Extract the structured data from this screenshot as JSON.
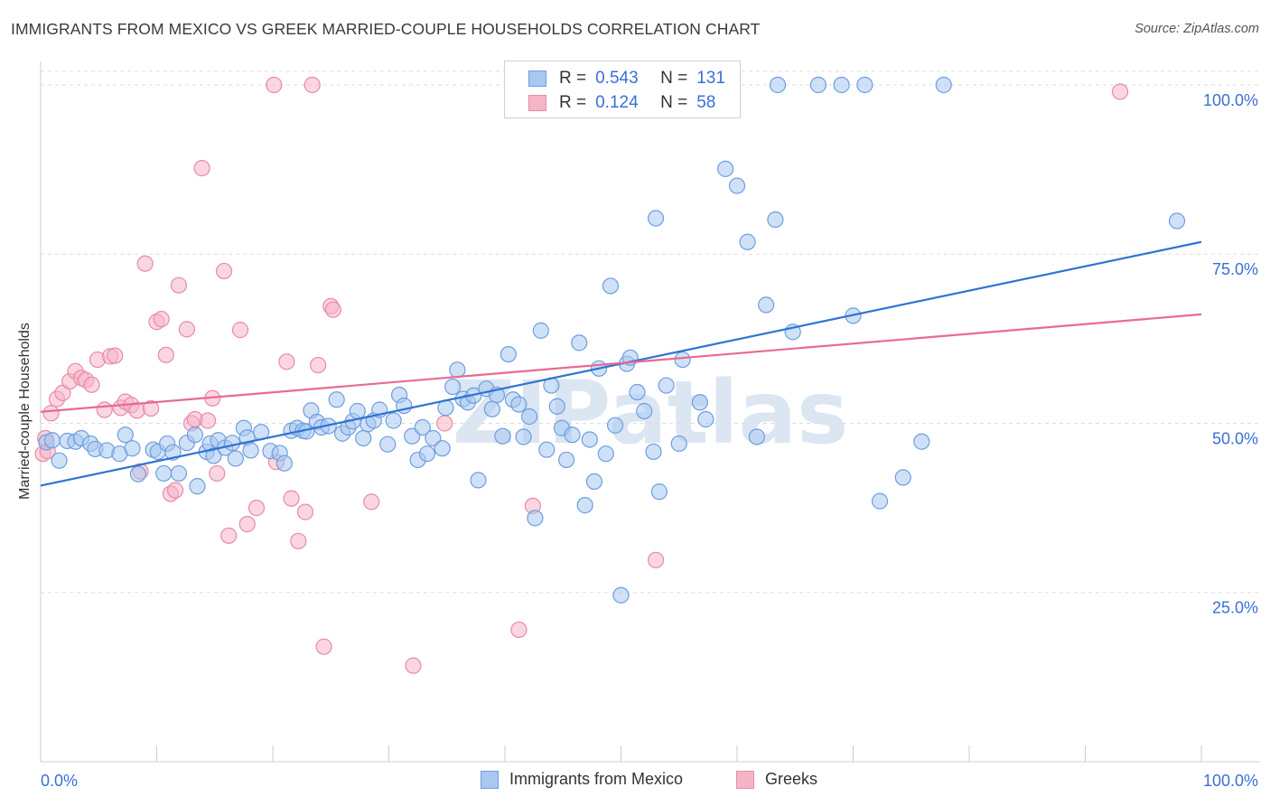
{
  "title": "IMMIGRANTS FROM MEXICO VS GREEK MARRIED-COUPLE HOUSEHOLDS CORRELATION CHART",
  "source": "Source: ZipAtlas.com",
  "watermark": "ZIPatlas",
  "colors": {
    "blue": "#a8c8f0",
    "blue_stroke": "#6f9de0",
    "blue_line": "#2f74d0",
    "pink": "#f5b5c8",
    "pink_stroke": "#e88aa6",
    "pink_line": "#e86a94",
    "axis_label": "#3a6fd8"
  },
  "legend": {
    "rows": [
      {
        "r_label": "R =",
        "r_value": "0.543",
        "n_label": "N =",
        "n_value": "131"
      },
      {
        "r_label": "R =",
        "r_value": "0.124",
        "n_label": "N =",
        "n_value": "58"
      }
    ]
  },
  "bottom_legend": [
    "Immigrants from Mexico",
    "Greeks"
  ],
  "chart_data": {
    "type": "scatter",
    "title": "IMMIGRANTS FROM MEXICO VS GREEK MARRIED-COUPLE HOUSEHOLDS CORRELATION CHART",
    "xlabel": "",
    "ylabel": "Married-couple Households",
    "xlim": [
      0,
      100
    ],
    "ylim": [
      0,
      102
    ],
    "x_tick_labels": [
      "0.0%",
      "100.0%"
    ],
    "y_ticks": [
      25,
      50,
      75,
      100
    ],
    "y_tick_labels": [
      "25.0%",
      "50.0%",
      "75.0%",
      "100.0%"
    ],
    "grid": true,
    "series": [
      {
        "name": "Immigrants from Mexico",
        "color": "#a8c8f0",
        "trend": {
          "x": [
            0,
            100
          ],
          "y": [
            40.8,
            76.8
          ]
        },
        "points": [
          [
            0.5,
            47.2
          ],
          [
            1.0,
            47.5
          ],
          [
            1.6,
            44.5
          ],
          [
            2.3,
            47.4
          ],
          [
            3.0,
            47.3
          ],
          [
            3.5,
            47.8
          ],
          [
            4.3,
            47.0
          ],
          [
            4.7,
            46.2
          ],
          [
            5.7,
            46.0
          ],
          [
            6.8,
            45.5
          ],
          [
            7.3,
            48.3
          ],
          [
            7.9,
            46.3
          ],
          [
            8.4,
            42.5
          ],
          [
            9.7,
            46.1
          ],
          [
            10.1,
            45.8
          ],
          [
            10.6,
            42.6
          ],
          [
            10.9,
            47.0
          ],
          [
            11.4,
            45.7
          ],
          [
            11.9,
            42.6
          ],
          [
            12.6,
            47.1
          ],
          [
            13.3,
            48.3
          ],
          [
            13.5,
            40.7
          ],
          [
            14.3,
            45.8
          ],
          [
            14.6,
            47.0
          ],
          [
            14.9,
            45.2
          ],
          [
            15.3,
            47.5
          ],
          [
            15.9,
            46.4
          ],
          [
            16.5,
            47.1
          ],
          [
            16.8,
            44.8
          ],
          [
            17.5,
            49.3
          ],
          [
            17.8,
            47.9
          ],
          [
            18.1,
            46.0
          ],
          [
            19.0,
            48.7
          ],
          [
            19.8,
            45.9
          ],
          [
            20.6,
            45.6
          ],
          [
            21.0,
            44.1
          ],
          [
            21.6,
            48.9
          ],
          [
            22.1,
            49.3
          ],
          [
            22.6,
            48.9
          ],
          [
            22.9,
            48.8
          ],
          [
            23.3,
            51.9
          ],
          [
            23.8,
            50.2
          ],
          [
            24.2,
            49.4
          ],
          [
            24.8,
            49.6
          ],
          [
            25.5,
            53.5
          ],
          [
            26.0,
            48.5
          ],
          [
            26.5,
            49.4
          ],
          [
            26.9,
            50.3
          ],
          [
            27.3,
            51.8
          ],
          [
            27.8,
            47.8
          ],
          [
            28.2,
            49.9
          ],
          [
            28.7,
            50.4
          ],
          [
            29.2,
            52.0
          ],
          [
            29.9,
            46.9
          ],
          [
            30.4,
            50.4
          ],
          [
            30.9,
            54.2
          ],
          [
            31.3,
            52.6
          ],
          [
            32.0,
            48.1
          ],
          [
            32.5,
            44.6
          ],
          [
            32.9,
            49.4
          ],
          [
            33.3,
            45.5
          ],
          [
            33.8,
            47.8
          ],
          [
            34.6,
            46.3
          ],
          [
            34.9,
            52.3
          ],
          [
            35.5,
            55.4
          ],
          [
            35.9,
            57.9
          ],
          [
            36.4,
            53.6
          ],
          [
            36.8,
            53.1
          ],
          [
            37.3,
            54.1
          ],
          [
            37.7,
            41.6
          ],
          [
            38.4,
            55.1
          ],
          [
            38.9,
            52.1
          ],
          [
            39.3,
            54.2
          ],
          [
            39.8,
            48.1
          ],
          [
            40.3,
            60.2
          ],
          [
            40.7,
            53.5
          ],
          [
            41.2,
            52.8
          ],
          [
            41.6,
            48.0
          ],
          [
            42.1,
            51.0
          ],
          [
            42.6,
            36.0
          ],
          [
            43.1,
            63.7
          ],
          [
            43.6,
            46.1
          ],
          [
            44.0,
            55.6
          ],
          [
            44.5,
            52.5
          ],
          [
            44.9,
            49.3
          ],
          [
            45.3,
            44.6
          ],
          [
            45.8,
            48.3
          ],
          [
            46.4,
            61.9
          ],
          [
            46.9,
            37.9
          ],
          [
            47.3,
            47.6
          ],
          [
            47.7,
            41.4
          ],
          [
            48.1,
            58.1
          ],
          [
            48.7,
            45.5
          ],
          [
            49.1,
            70.3
          ],
          [
            49.5,
            49.7
          ],
          [
            50.0,
            24.6
          ],
          [
            50.5,
            58.8
          ],
          [
            50.8,
            59.7
          ],
          [
            51.4,
            54.6
          ],
          [
            52.0,
            51.8
          ],
          [
            52.8,
            45.8
          ],
          [
            53.3,
            39.9
          ],
          [
            53.9,
            55.6
          ],
          [
            54.4,
            100.0
          ],
          [
            55.0,
            47.0
          ],
          [
            55.3,
            59.4
          ],
          [
            56.8,
            53.1
          ],
          [
            57.3,
            50.6
          ],
          [
            58.2,
            100.0
          ],
          [
            59.0,
            87.6
          ],
          [
            60.0,
            85.1
          ],
          [
            60.9,
            76.8
          ],
          [
            61.7,
            48.0
          ],
          [
            62.5,
            67.5
          ],
          [
            63.3,
            80.1
          ],
          [
            63.5,
            100.0
          ],
          [
            64.8,
            63.5
          ],
          [
            67.0,
            100.0
          ],
          [
            69.0,
            100.0
          ],
          [
            71.0,
            100.0
          ],
          [
            70.0,
            65.9
          ],
          [
            72.3,
            38.5
          ],
          [
            74.3,
            42.0
          ],
          [
            75.9,
            47.3
          ],
          [
            77.8,
            100.0
          ],
          [
            97.9,
            79.9
          ],
          [
            53.0,
            80.3
          ]
        ]
      },
      {
        "name": "Greeks",
        "color": "#f5b5c8",
        "trend": {
          "x": [
            0,
            100
          ],
          "y": [
            51.7,
            66.1
          ]
        },
        "points": [
          [
            0.2,
            45.5
          ],
          [
            0.4,
            47.8
          ],
          [
            0.6,
            45.9
          ],
          [
            0.9,
            51.5
          ],
          [
            1.4,
            53.6
          ],
          [
            1.9,
            54.5
          ],
          [
            2.5,
            56.2
          ],
          [
            3.0,
            57.7
          ],
          [
            3.5,
            56.7
          ],
          [
            3.9,
            56.4
          ],
          [
            4.4,
            55.7
          ],
          [
            4.9,
            59.4
          ],
          [
            5.5,
            52.0
          ],
          [
            6.0,
            59.9
          ],
          [
            6.4,
            60.0
          ],
          [
            6.9,
            52.3
          ],
          [
            7.3,
            53.2
          ],
          [
            7.8,
            52.7
          ],
          [
            8.3,
            51.9
          ],
          [
            8.6,
            42.9
          ],
          [
            9.0,
            73.6
          ],
          [
            9.5,
            52.2
          ],
          [
            10.0,
            65.0
          ],
          [
            10.4,
            65.4
          ],
          [
            10.8,
            60.1
          ],
          [
            11.2,
            39.6
          ],
          [
            11.6,
            40.1
          ],
          [
            11.9,
            70.4
          ],
          [
            12.6,
            63.9
          ],
          [
            13.0,
            50.0
          ],
          [
            13.3,
            50.6
          ],
          [
            13.9,
            87.7
          ],
          [
            14.4,
            50.4
          ],
          [
            14.8,
            53.7
          ],
          [
            15.2,
            42.6
          ],
          [
            15.8,
            72.5
          ],
          [
            16.2,
            33.4
          ],
          [
            17.2,
            63.8
          ],
          [
            17.8,
            35.1
          ],
          [
            18.6,
            37.5
          ],
          [
            20.1,
            100.0
          ],
          [
            20.3,
            44.3
          ],
          [
            21.2,
            59.1
          ],
          [
            21.6,
            38.9
          ],
          [
            22.2,
            32.6
          ],
          [
            22.8,
            36.9
          ],
          [
            23.4,
            100.0
          ],
          [
            23.9,
            58.6
          ],
          [
            24.4,
            17.0
          ],
          [
            25.0,
            67.3
          ],
          [
            25.2,
            66.8
          ],
          [
            28.5,
            38.4
          ],
          [
            32.1,
            14.2
          ],
          [
            34.8,
            50.0
          ],
          [
            41.2,
            19.5
          ],
          [
            42.4,
            37.8
          ],
          [
            53.0,
            29.8
          ],
          [
            93.0,
            99.0
          ]
        ]
      }
    ]
  }
}
